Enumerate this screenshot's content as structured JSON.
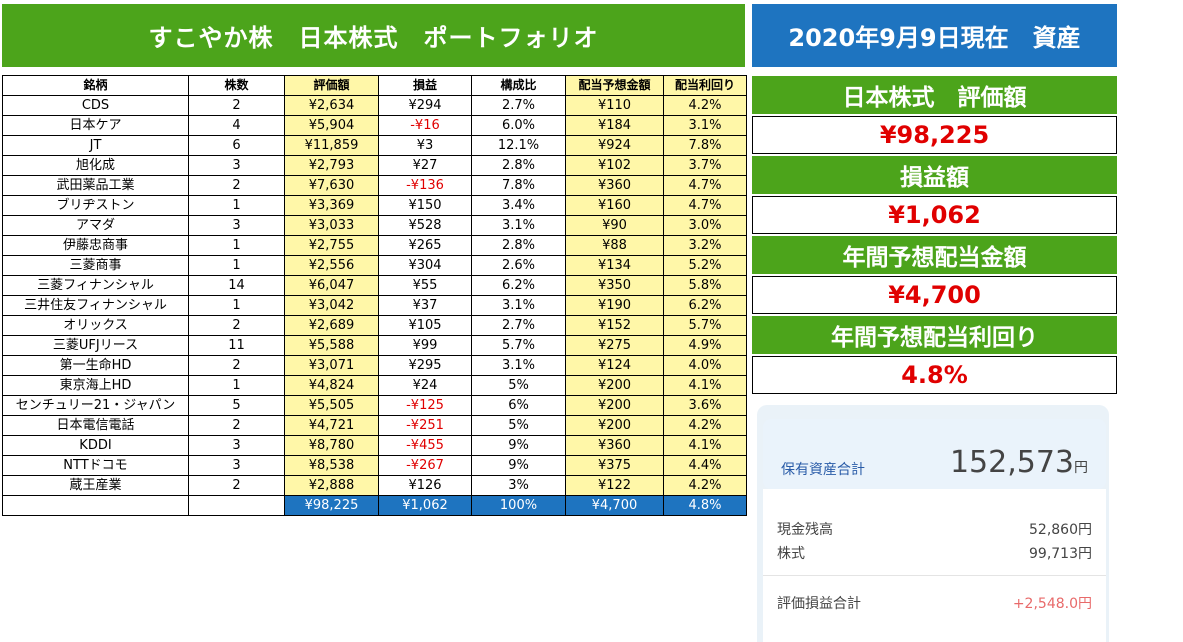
{
  "header": {
    "title": "すこやか株　日本株式　ポートフォリオ",
    "date": "2020年9月9日現在　資産"
  },
  "table": {
    "columns": [
      "銘柄",
      "株数",
      "評価額",
      "損益",
      "構成比",
      "配当予想金額",
      "配当利回り"
    ],
    "rows": [
      {
        "name": "CDS",
        "shares": "2",
        "value": "¥2,634",
        "pl": "¥294",
        "ratio": "2.7%",
        "div": "¥110",
        "yield": "4.2%",
        "neg": false
      },
      {
        "name": "日本ケア",
        "shares": "4",
        "value": "¥5,904",
        "pl": "-¥16",
        "ratio": "6.0%",
        "div": "¥184",
        "yield": "3.1%",
        "neg": true
      },
      {
        "name": "JT",
        "shares": "6",
        "value": "¥11,859",
        "pl": "¥3",
        "ratio": "12.1%",
        "div": "¥924",
        "yield": "7.8%",
        "neg": false
      },
      {
        "name": "旭化成",
        "shares": "3",
        "value": "¥2,793",
        "pl": "¥27",
        "ratio": "2.8%",
        "div": "¥102",
        "yield": "3.7%",
        "neg": false
      },
      {
        "name": "武田薬品工業",
        "shares": "2",
        "value": "¥7,630",
        "pl": "-¥136",
        "ratio": "7.8%",
        "div": "¥360",
        "yield": "4.7%",
        "neg": true
      },
      {
        "name": "ブリヂストン",
        "shares": "1",
        "value": "¥3,369",
        "pl": "¥150",
        "ratio": "3.4%",
        "div": "¥160",
        "yield": "4.7%",
        "neg": false
      },
      {
        "name": "アマダ",
        "shares": "3",
        "value": "¥3,033",
        "pl": "¥528",
        "ratio": "3.1%",
        "div": "¥90",
        "yield": "3.0%",
        "neg": false
      },
      {
        "name": "伊藤忠商事",
        "shares": "1",
        "value": "¥2,755",
        "pl": "¥265",
        "ratio": "2.8%",
        "div": "¥88",
        "yield": "3.2%",
        "neg": false
      },
      {
        "name": "三菱商事",
        "shares": "1",
        "value": "¥2,556",
        "pl": "¥304",
        "ratio": "2.6%",
        "div": "¥134",
        "yield": "5.2%",
        "neg": false
      },
      {
        "name": "三菱フィナンシャル",
        "shares": "14",
        "value": "¥6,047",
        "pl": "¥55",
        "ratio": "6.2%",
        "div": "¥350",
        "yield": "5.8%",
        "neg": false
      },
      {
        "name": "三井住友フィナンシャル",
        "shares": "1",
        "value": "¥3,042",
        "pl": "¥37",
        "ratio": "3.1%",
        "div": "¥190",
        "yield": "6.2%",
        "neg": false
      },
      {
        "name": "オリックス",
        "shares": "2",
        "value": "¥2,689",
        "pl": "¥105",
        "ratio": "2.7%",
        "div": "¥152",
        "yield": "5.7%",
        "neg": false
      },
      {
        "name": "三菱UFJリース",
        "shares": "11",
        "value": "¥5,588",
        "pl": "¥99",
        "ratio": "5.7%",
        "div": "¥275",
        "yield": "4.9%",
        "neg": false
      },
      {
        "name": "第一生命HD",
        "shares": "2",
        "value": "¥3,071",
        "pl": "¥295",
        "ratio": "3.1%",
        "div": "¥124",
        "yield": "4.0%",
        "neg": false
      },
      {
        "name": "東京海上HD",
        "shares": "1",
        "value": "¥4,824",
        "pl": "¥24",
        "ratio": "5%",
        "div": "¥200",
        "yield": "4.1%",
        "neg": false
      },
      {
        "name": "センチュリー21・ジャパン",
        "shares": "5",
        "value": "¥5,505",
        "pl": "-¥125",
        "ratio": "6%",
        "div": "¥200",
        "yield": "3.6%",
        "neg": true
      },
      {
        "name": "日本電信電話",
        "shares": "2",
        "value": "¥4,721",
        "pl": "-¥251",
        "ratio": "5%",
        "div": "¥200",
        "yield": "4.2%",
        "neg": true
      },
      {
        "name": "KDDI",
        "shares": "3",
        "value": "¥8,780",
        "pl": "-¥455",
        "ratio": "9%",
        "div": "¥360",
        "yield": "4.1%",
        "neg": true
      },
      {
        "name": "NTTドコモ",
        "shares": "3",
        "value": "¥8,538",
        "pl": "-¥267",
        "ratio": "9%",
        "div": "¥375",
        "yield": "4.4%",
        "neg": true
      },
      {
        "name": "蔵王産業",
        "shares": "2",
        "value": "¥2,888",
        "pl": "¥126",
        "ratio": "3%",
        "div": "¥122",
        "yield": "4.2%",
        "neg": false
      }
    ],
    "total": {
      "value": "¥98,225",
      "pl": "¥1,062",
      "ratio": "100%",
      "div": "¥4,700",
      "yield": "4.8%"
    }
  },
  "summary": {
    "valuation_label": "日本株式　評価額",
    "valuation": "¥98,225",
    "pl_label": "損益額",
    "pl": "¥1,062",
    "dividend_label": "年間予想配当金額",
    "dividend": "¥4,700",
    "yield_label": "年間予想配当利回り",
    "yield": "4.8%"
  },
  "asset_card": {
    "total_label": "保有資産合計",
    "total_value": "152,573",
    "total_unit": "円",
    "cash_label": "現金残高",
    "cash_value": "52,860円",
    "stock_label": "株式",
    "stock_value": "99,713円",
    "unrealized_label": "評価損益合計",
    "unrealized_value": "+2,548.0円"
  }
}
